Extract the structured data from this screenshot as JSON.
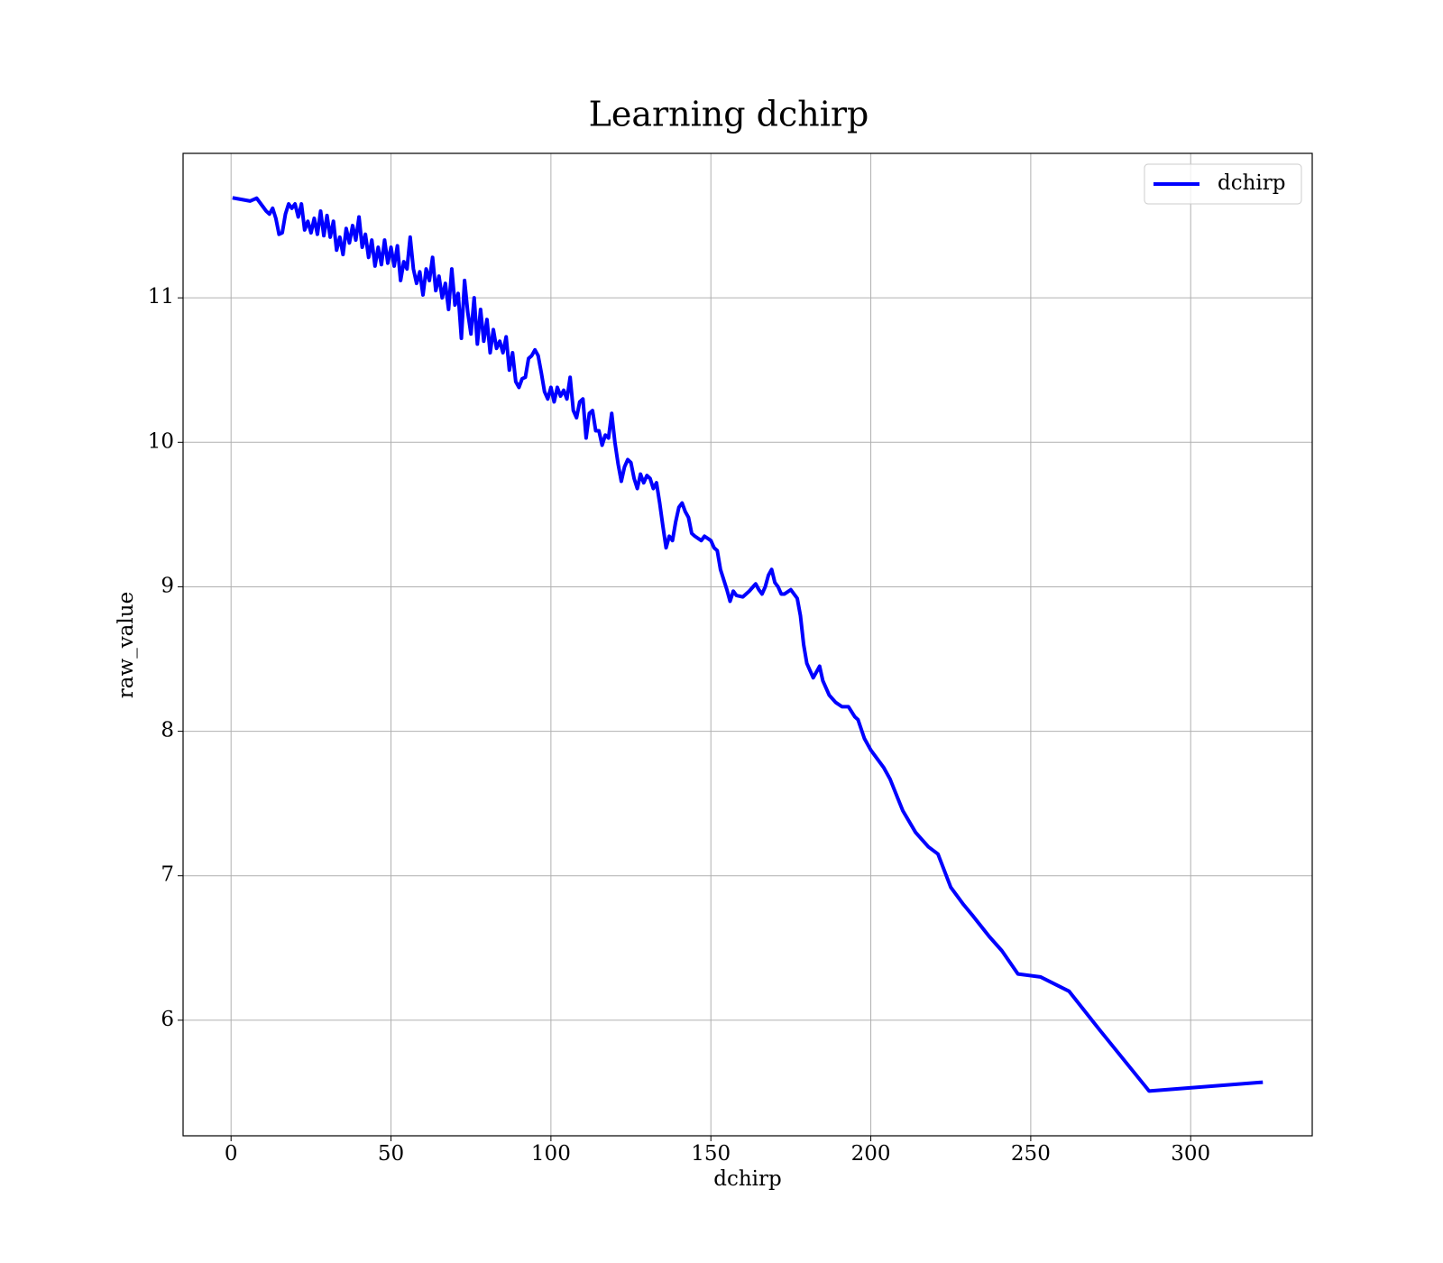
{
  "chart_data": {
    "type": "line",
    "title": "Learning dchirp",
    "xlabel": "dchirp",
    "ylabel": "raw_value",
    "x": [
      1,
      6,
      8,
      10,
      11,
      12,
      13,
      14,
      15,
      16,
      17,
      18,
      19,
      20,
      21,
      22,
      23,
      24,
      25,
      26,
      27,
      28,
      29,
      30,
      31,
      32,
      33,
      34,
      35,
      36,
      37,
      38,
      39,
      40,
      41,
      42,
      43,
      44,
      45,
      46,
      47,
      48,
      49,
      50,
      51,
      52,
      53,
      54,
      55,
      56,
      57,
      58,
      59,
      60,
      61,
      62,
      63,
      64,
      65,
      66,
      67,
      68,
      69,
      70,
      71,
      72,
      73,
      74,
      75,
      76,
      77,
      78,
      79,
      80,
      81,
      82,
      83,
      84,
      85,
      86,
      87,
      88,
      89,
      90,
      91,
      92,
      93,
      94,
      95,
      96,
      97,
      98,
      99,
      100,
      101,
      102,
      103,
      104,
      105,
      106,
      107,
      108,
      109,
      110,
      111,
      112,
      113,
      114,
      115,
      116,
      117,
      118,
      119,
      120,
      121,
      122,
      123,
      124,
      125,
      126,
      127,
      128,
      129,
      130,
      131,
      132,
      133,
      134,
      135,
      136,
      137,
      138,
      139,
      140,
      141,
      142,
      143,
      144,
      145,
      147,
      148,
      150,
      151,
      152,
      153,
      155,
      156,
      157,
      158,
      160,
      162,
      164,
      165,
      166,
      167,
      168,
      169,
      170,
      171,
      172,
      173,
      175,
      177,
      178,
      179,
      180,
      182,
      184,
      185,
      187,
      189,
      191,
      193,
      195,
      196,
      198,
      200,
      204,
      206,
      210,
      214,
      218,
      221,
      225,
      229,
      232,
      237,
      241,
      246,
      253,
      262,
      272,
      287,
      322
    ],
    "series": [
      {
        "name": "dchirp",
        "color": "#0000ff",
        "values": [
          11.69,
          11.67,
          11.69,
          11.63,
          11.6,
          11.58,
          11.62,
          11.55,
          11.44,
          11.45,
          11.58,
          11.65,
          11.62,
          11.65,
          11.56,
          11.65,
          11.47,
          11.53,
          11.45,
          11.55,
          11.44,
          11.6,
          11.43,
          11.57,
          11.42,
          11.53,
          11.33,
          11.42,
          11.3,
          11.48,
          11.38,
          11.5,
          11.4,
          11.56,
          11.35,
          11.44,
          11.28,
          11.4,
          11.22,
          11.35,
          11.23,
          11.4,
          11.24,
          11.35,
          11.22,
          11.36,
          11.12,
          11.25,
          11.2,
          11.42,
          11.2,
          11.1,
          11.18,
          11.02,
          11.2,
          11.12,
          11.28,
          11.05,
          11.15,
          11.0,
          11.1,
          10.92,
          11.2,
          10.95,
          11.03,
          10.72,
          11.12,
          10.9,
          10.75,
          11.0,
          10.68,
          10.92,
          10.7,
          10.85,
          10.62,
          10.78,
          10.65,
          10.7,
          10.62,
          10.73,
          10.5,
          10.62,
          10.42,
          10.38,
          10.44,
          10.45,
          10.58,
          10.6,
          10.64,
          10.6,
          10.48,
          10.35,
          10.3,
          10.38,
          10.28,
          10.38,
          10.32,
          10.36,
          10.3,
          10.45,
          10.22,
          10.17,
          10.28,
          10.3,
          10.03,
          10.2,
          10.22,
          10.08,
          10.08,
          9.98,
          10.05,
          10.03,
          10.2,
          10.0,
          9.85,
          9.73,
          9.83,
          9.88,
          9.86,
          9.75,
          9.68,
          9.78,
          9.72,
          9.77,
          9.75,
          9.68,
          9.72,
          9.58,
          9.42,
          9.27,
          9.35,
          9.32,
          9.45,
          9.55,
          9.58,
          9.52,
          9.48,
          9.37,
          9.35,
          9.32,
          9.35,
          9.32,
          9.27,
          9.25,
          9.12,
          8.98,
          8.9,
          8.97,
          8.94,
          8.93,
          8.97,
          9.02,
          8.98,
          8.95,
          9.0,
          9.08,
          9.12,
          9.03,
          9.0,
          8.95,
          8.95,
          8.98,
          8.92,
          8.8,
          8.6,
          8.47,
          8.37,
          8.45,
          8.35,
          8.25,
          8.2,
          8.17,
          8.17,
          8.1,
          8.08,
          7.95,
          7.87,
          7.75,
          7.67,
          7.45,
          7.3,
          7.2,
          7.15,
          6.92,
          6.8,
          6.72,
          6.58,
          6.48,
          6.32,
          6.3,
          6.2,
          5.92,
          5.51,
          5.57
        ]
      }
    ],
    "xlim": [
      -15,
      338
    ],
    "ylim": [
      5.2,
      12.0
    ],
    "xticks": [
      0,
      50,
      100,
      150,
      200,
      250,
      300
    ],
    "yticks": [
      6,
      7,
      8,
      9,
      10,
      11
    ],
    "grid": true,
    "legend": "upper right"
  }
}
